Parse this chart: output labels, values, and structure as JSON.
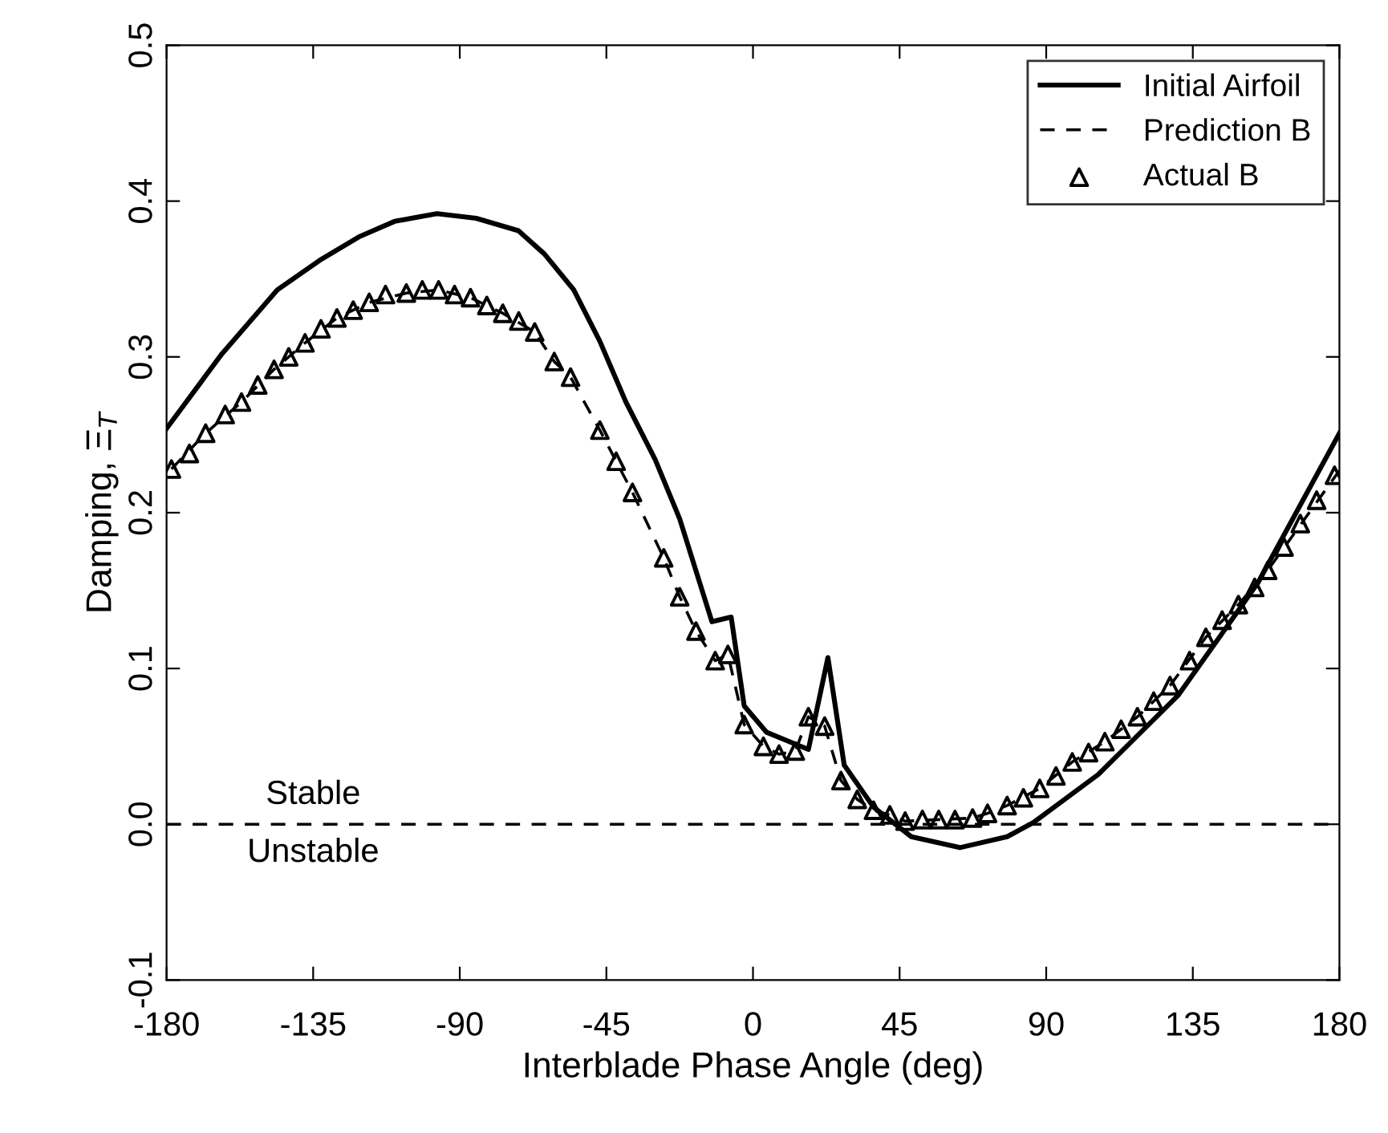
{
  "chart_data": {
    "type": "line",
    "xlabel": "Interblade Phase Angle (deg)",
    "ylabel": "Damping, Ξ$_{T}$",
    "xlim": [
      -180,
      180
    ],
    "ylim": [
      -0.1,
      0.5
    ],
    "xticks": [
      -180,
      -135,
      -90,
      -45,
      0,
      45,
      90,
      135,
      180
    ],
    "yticks": [
      -0.1,
      {
        "value": 0,
        "label": "0.0"
      },
      0.1,
      0.2,
      0.3,
      0.4,
      0.5
    ],
    "grid": false,
    "legend": "top right",
    "series": [
      {
        "name": "Initial Airfoil",
        "line_style": "solid",
        "marker": "none",
        "color": "#000000",
        "x": [
          -180,
          -163,
          -146,
          -133,
          -121,
          -110,
          -97,
          -85,
          -72,
          -64,
          -55,
          -47,
          -39,
          -30,
          -22.5,
          -12.6,
          -6.7,
          -2.7,
          4.2,
          17,
          23,
          28,
          37,
          48.6,
          63.5,
          78,
          86,
          106,
          130.6,
          155,
          180
        ],
        "values": [
          0.254,
          0.302,
          0.343,
          0.362,
          0.377,
          0.387,
          0.392,
          0.389,
          0.381,
          0.366,
          0.343,
          0.31,
          0.271,
          0.234,
          0.196,
          0.13,
          0.133,
          0.076,
          0.059,
          0.048,
          0.107,
          0.038,
          0.011,
          -0.008,
          -0.015,
          -0.008,
          0.001,
          0.032,
          0.083,
          0.155,
          0.251
        ]
      },
      {
        "name": "Prediction B",
        "line_style": "dashed",
        "marker": "none",
        "color": "#000000",
        "x": [
          -178.5,
          -168,
          -157,
          -147,
          -137.5,
          -127.7,
          -117.8,
          -106.4,
          -96.5,
          -86.7,
          -76.8,
          -67,
          -61,
          -56,
          -47,
          -42,
          -37,
          -27.4,
          -22.5,
          -17.5,
          -11.6,
          -7.7,
          -2.7,
          3.2,
          8,
          13,
          17,
          22,
          27,
          32,
          37,
          42,
          46.7,
          67.4,
          72,
          78,
          88,
          98,
          108,
          118,
          128,
          139,
          149,
          158,
          180
        ],
        "values": [
          0.228,
          0.251,
          0.271,
          0.292,
          0.309,
          0.325,
          0.335,
          0.341,
          0.343,
          0.338,
          0.328,
          0.316,
          0.297,
          0.287,
          0.253,
          0.233,
          0.213,
          0.171,
          0.146,
          0.124,
          0.105,
          0.109,
          0.064,
          0.05,
          0.045,
          0.047,
          0.069,
          0.063,
          0.028,
          0.016,
          0.009,
          0.006,
          0.002,
          0.004,
          0.007,
          0.012,
          0.023,
          0.04,
          0.053,
          0.069,
          0.089,
          0.12,
          0.141,
          0.163,
          0.227
        ]
      },
      {
        "name": "Actual B",
        "type": "scatter",
        "marker": "triangle",
        "color": "#000000",
        "x": [
          -178.5,
          -173,
          -168,
          -162,
          -157,
          -152,
          -147,
          -142.5,
          -137.5,
          -132.6,
          -127.7,
          -122.7,
          -117.8,
          -112.8,
          -106.4,
          -101.5,
          -96.5,
          -91.6,
          -86.7,
          -81.7,
          -76.8,
          -71.9,
          -67,
          -61,
          -56,
          -47,
          -42,
          -37,
          -27.4,
          -22.5,
          -17.5,
          -11.6,
          -7.7,
          -2.7,
          3.2,
          8,
          13,
          17,
          22,
          27,
          32,
          37,
          42,
          46.7,
          52,
          57,
          62,
          67.4,
          72,
          78,
          83,
          88,
          93,
          98,
          103,
          108,
          113,
          118,
          123,
          128,
          134,
          139,
          144,
          149,
          154,
          158,
          163,
          168,
          173,
          178.5
        ],
        "values": [
          0.228,
          0.238,
          0.251,
          0.263,
          0.271,
          0.282,
          0.292,
          0.3,
          0.309,
          0.318,
          0.325,
          0.33,
          0.335,
          0.34,
          0.341,
          0.343,
          0.343,
          0.34,
          0.338,
          0.333,
          0.328,
          0.323,
          0.316,
          0.297,
          0.287,
          0.253,
          0.233,
          0.213,
          0.171,
          0.146,
          0.124,
          0.105,
          0.109,
          0.064,
          0.05,
          0.045,
          0.047,
          0.069,
          0.063,
          0.028,
          0.016,
          0.009,
          0.006,
          0.002,
          0.003,
          0.003,
          0.003,
          0.004,
          0.007,
          0.012,
          0.017,
          0.023,
          0.031,
          0.04,
          0.046,
          0.053,
          0.061,
          0.069,
          0.079,
          0.089,
          0.105,
          0.12,
          0.131,
          0.141,
          0.152,
          0.163,
          0.178,
          0.193,
          0.208,
          0.224
        ]
      }
    ],
    "ref_lines": [
      {
        "axis": "y",
        "value": 0.0,
        "line_style": "dashed",
        "color": "#000000"
      }
    ],
    "annotations": [
      "Stable",
      "Unstable"
    ]
  }
}
